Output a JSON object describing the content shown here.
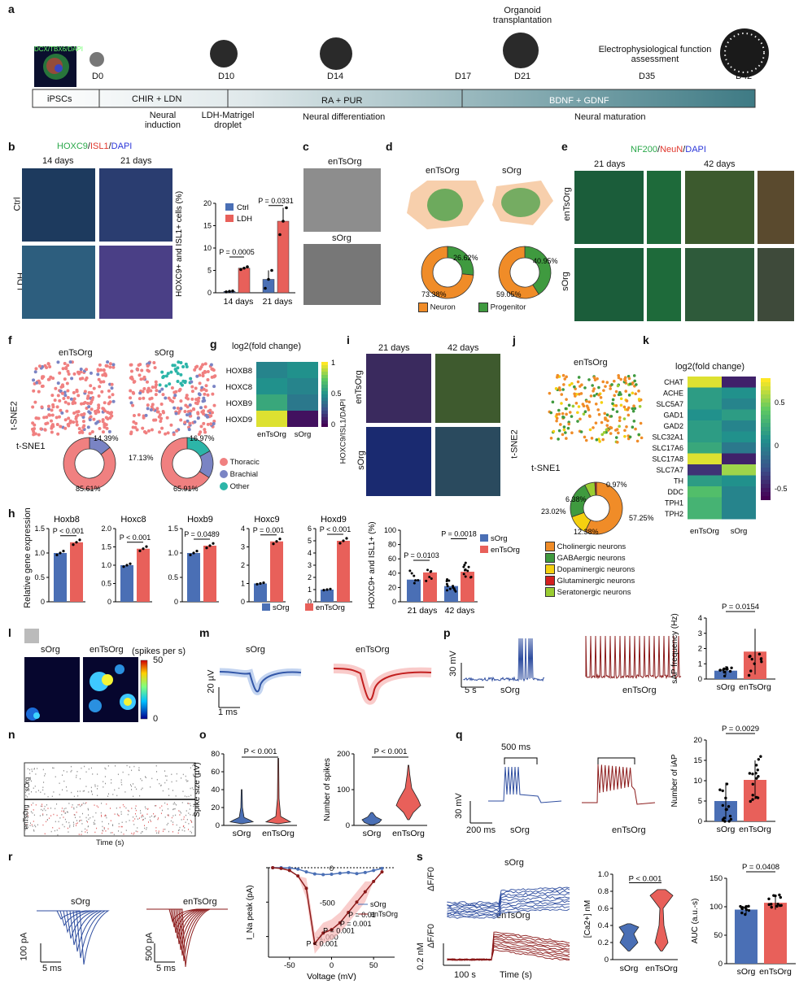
{
  "panels": [
    "a",
    "b",
    "c",
    "d",
    "e",
    "f",
    "g",
    "h",
    "i",
    "j",
    "k",
    "l",
    "m",
    "n",
    "o",
    "p",
    "q",
    "r",
    "s"
  ],
  "a": {
    "days": [
      "D0",
      "D10",
      "D14",
      "D17",
      "D21",
      "D35",
      "D42"
    ],
    "events": [
      "Organoid transplantation",
      "Electrophysiological function assessment"
    ],
    "inset": "DCX/TBX6/DAPI",
    "stages": [
      "iPSCs",
      "CHIR + LDN",
      "RA + PUR",
      "BDNF + GDNF"
    ],
    "phases": [
      "Neural induction",
      "LDH-Matrigel droplet",
      "Neural differentiation",
      "Neural maturation"
    ]
  },
  "b": {
    "stain": {
      "g": "HOXC9",
      "r": "ISL1",
      "b": "DAPI"
    },
    "cols": [
      "14 days",
      "21 days"
    ],
    "rows": [
      "Ctrl",
      "LDH"
    ],
    "ylabel": "HOXC9+ and ISL1+ cells (%)",
    "legend": [
      "Ctrl",
      "LDH"
    ],
    "groups": [
      "14 days",
      "21 days"
    ],
    "p": [
      "P = 0.0005",
      "P = 0.0331"
    ],
    "ticks": [
      "0",
      "5",
      "10",
      "15",
      "20"
    ]
  },
  "c": {
    "labels": [
      "enTsOrg",
      "sOrg"
    ]
  },
  "d": {
    "labels": [
      "enTsOrg",
      "sOrg"
    ],
    "pct": [
      "26.62%",
      "73.38%",
      "40.95%",
      "59.05%"
    ],
    "legend": [
      "Neuron",
      "Progenitor"
    ]
  },
  "e": {
    "stain": {
      "g": "NF200",
      "r": "NeuN",
      "b": "DAPI"
    },
    "cols": [
      "21 days",
      "42 days"
    ],
    "rows": [
      "enTsOrg",
      "sOrg"
    ]
  },
  "f": {
    "labels": [
      "enTsOrg",
      "sOrg"
    ],
    "axes": [
      "t-SNE2",
      "t-SNE1"
    ],
    "pct": [
      "14.39%",
      "85.61%",
      "17.13%",
      "16.97%",
      "65.91%"
    ],
    "legend": [
      "Thoracic",
      "Brachial",
      "Other"
    ]
  },
  "g": {
    "title": "log2(fold change)",
    "rows": [
      "HOXB8",
      "HOXC8",
      "HOXB9",
      "HOXD9"
    ],
    "cols": [
      "enTsOrg",
      "sOrg"
    ],
    "ticks": [
      "1",
      "0.5",
      "0"
    ]
  },
  "h": {
    "genes": [
      "Hoxb8",
      "Hoxc8",
      "Hoxb9",
      "Hoxc9",
      "Hoxd9"
    ],
    "p": [
      "P < 0.001",
      "P < 0.001",
      "P = 0.0489",
      "P = 0.001",
      "P < 0.001"
    ],
    "ylabel": "Relative gene expression",
    "legend": [
      "sOrg",
      "enTsOrg"
    ],
    "ticks": [
      [
        "0",
        "0.5",
        "1.0",
        "1.5"
      ],
      [
        "0",
        "0.5",
        "1.0",
        "1.5",
        "2.0"
      ],
      [
        "0",
        "0.5",
        "1.0",
        "1.5"
      ],
      [
        "0",
        "1",
        "2",
        "3",
        "4"
      ],
      [
        "0",
        "1",
        "2",
        "3",
        "4",
        "5",
        "6"
      ]
    ],
    "right": {
      "ylabel": "HOXC9+ and ISL1+ (%)",
      "groups": [
        "21 days",
        "42 days"
      ],
      "p": [
        "P = 0.0103",
        "P = 0.0018"
      ],
      "ticks": [
        "0",
        "20",
        "40",
        "60",
        "80",
        "100"
      ]
    }
  },
  "i": {
    "cols": [
      "21 days",
      "42 days"
    ],
    "rows": [
      "enTsOrg",
      "sOrg"
    ],
    "stain": "HOXC9/ISL1/DAPI"
  },
  "j": {
    "label": "enTsOrg",
    "axes": [
      "t-SNE2",
      "t-SNE1"
    ],
    "pct": [
      "6.38%",
      "0.97%",
      "23.02%",
      "12.38%",
      "57.25%"
    ],
    "legend": [
      "Cholinergic neurons",
      "GABAergic neurons",
      "Dopaminergic neurons",
      "Glutaminergic neurons",
      "Seratonergic neurons"
    ]
  },
  "k": {
    "title": "log2(fold change)",
    "rows": [
      "CHAT",
      "ACHE",
      "SLC5A7",
      "GAD1",
      "GAD2",
      "SLC32A1",
      "SLC17A6",
      "SLC17A8",
      "SLC7A7",
      "TH",
      "DDC",
      "TPH1",
      "TPH2"
    ],
    "cols": [
      "enTsOrg",
      "sOrg"
    ],
    "ticks": [
      "0.5",
      "0",
      "-0.5"
    ]
  },
  "l": {
    "labels": [
      "sOrg",
      "enTsOrg"
    ],
    "unit": "(spikes per s)",
    "ticks": [
      "50",
      "0"
    ]
  },
  "m": {
    "labels": [
      "sOrg",
      "enTsOrg"
    ],
    "scale": [
      "20 µV",
      "1 ms"
    ]
  },
  "n": {
    "rows": [
      "sOrg",
      "enTsOrg"
    ],
    "xlabel": "Time (s)"
  },
  "o": {
    "ylabel1": "Spike size (µV)",
    "ylabel2": "Number of spikes",
    "p": [
      "P < 0.001",
      "P <  0.001"
    ],
    "ticks1": [
      "0",
      "20",
      "40",
      "60",
      "80"
    ],
    "ticks2": [
      "0",
      "100",
      "200"
    ],
    "groups": [
      "sOrg",
      "enTsOrg"
    ]
  },
  "p": {
    "labels": [
      "sOrg",
      "enTsOrg"
    ],
    "scale": [
      "30 mV",
      "5 s"
    ],
    "ylabel": "sAP frequency (Hz)",
    "pval": "P = 0.0154",
    "ticks": [
      "0",
      "1",
      "2",
      "3",
      "4"
    ],
    "groups": [
      "sOrg",
      "enTsOrg"
    ]
  },
  "q": {
    "labels": [
      "sOrg",
      "enTsOrg"
    ],
    "scale": [
      "500 ms",
      "30 mV",
      "200 ms"
    ],
    "ylabel": "Number of iAP",
    "pval": "P = 0.0029",
    "ticks": [
      "0",
      "5",
      "10",
      "15",
      "20"
    ],
    "groups": [
      "sOrg",
      "enTsOrg"
    ]
  },
  "r": {
    "labels": [
      "sOrg",
      "enTsOrg"
    ],
    "scale": [
      "100 pA",
      "5 ms",
      "500 pA",
      "5 ms"
    ],
    "ylabel": "I_Na peak (pA)",
    "xlabel": "Voltage (mV)",
    "p": [
      "P = 0.01",
      "P = 0.001",
      "P = 0.001",
      "P < 0.001"
    ],
    "legend": [
      "sOrg",
      "enTsOrg"
    ],
    "xticks": [
      "-50",
      "0",
      "50"
    ],
    "yticks": [
      "0",
      "-500",
      "-1,000"
    ]
  },
  "s": {
    "labels": [
      "sOrg",
      "enTsOrg"
    ],
    "ylabel": "ΔF/F0",
    "scale": [
      "0.2 nM",
      "100 s"
    ],
    "xlabel": "Time (s)",
    "ylabel2": "[Ca2+] nM",
    "p2": "P < 0.001",
    "ticks2": [
      "0",
      "0.2",
      "0.4",
      "0.6",
      "0.8",
      "1.0"
    ],
    "ylabel3": "AUC (a.u.-s)",
    "p3": "P = 0.0408",
    "ticks3": [
      "0",
      "50",
      "100",
      "150"
    ],
    "groups": [
      "sOrg",
      "enTsOrg"
    ]
  },
  "colors": {
    "sorg": "#4a6fb5",
    "entsorg": "#e8605a",
    "dark_red": "#8b1a1a",
    "orange": "#f08c28",
    "green": "#3f9a3f",
    "teal": "#2cb5a8"
  }
}
